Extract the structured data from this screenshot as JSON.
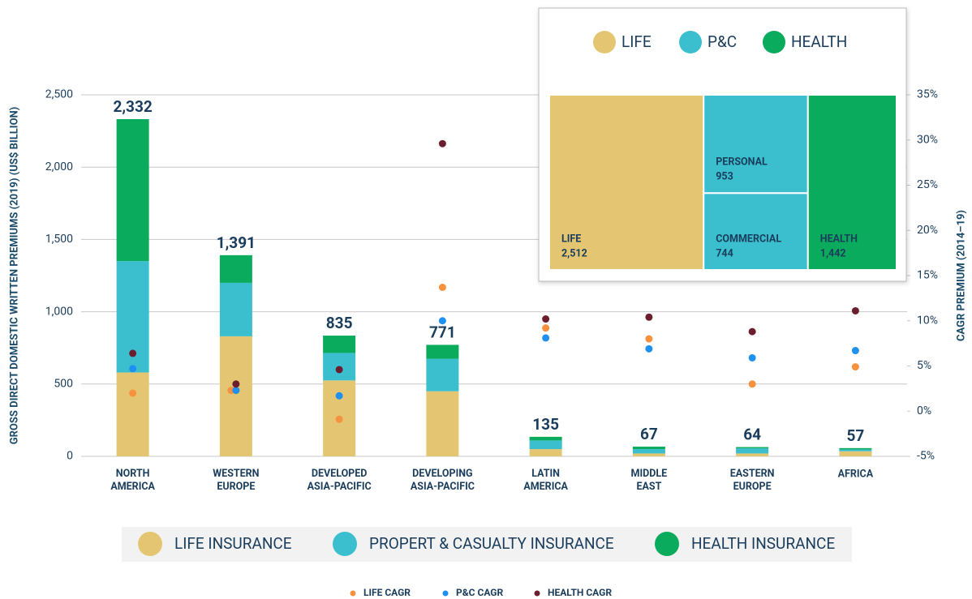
{
  "chart_data": [
    {
      "type": "bar",
      "stacked": true,
      "y_label": "GROSS DIRECT DOMESTIC WRITTEN PREMIUMS (2019) (US$ BILLION)",
      "y2_label": "CAGR PREMIUM (2014–19)",
      "categories": [
        "NORTH AMERICA",
        "WESTERN EUROPE",
        "DEVELOPED ASIA-PACIFIC",
        "DEVELOPING ASIA-PACIFIC",
        "LATIN AMERICA",
        "MIDDLE EAST",
        "EASTERN EUROPE",
        "AFRICA"
      ],
      "series": [
        {
          "name": "LIFE INSURANCE",
          "color": "#e4c672",
          "values": [
            580,
            830,
            525,
            450,
            50,
            20,
            20,
            35
          ]
        },
        {
          "name": "PROPERT & CASUALTY INSURANCE",
          "color": "#3bbfcf",
          "values": [
            770,
            370,
            190,
            225,
            60,
            30,
            35,
            12
          ]
        },
        {
          "name": "HEALTH INSURANCE",
          "color": "#0aab5c",
          "values": [
            982,
            191,
            120,
            96,
            25,
            17,
            9,
            10
          ]
        }
      ],
      "totals": {
        "values": [
          2332,
          1391,
          835,
          771,
          135,
          67,
          64,
          57
        ],
        "value_labels": [
          "2,332",
          "1,391",
          "835",
          "771",
          "135",
          "67",
          "64",
          "57"
        ]
      },
      "cagr_series": [
        {
          "name": "LIFE CAGR",
          "color": "#f7913d",
          "axis": "y2",
          "values": [
            2.0,
            2.3,
            -0.9,
            13.7,
            9.2,
            8.0,
            3.0,
            4.9
          ]
        },
        {
          "name": "P&C CAGR",
          "color": "#1e90f0",
          "axis": "y2",
          "values": [
            4.7,
            2.3,
            1.7,
            10.0,
            8.1,
            6.9,
            5.9,
            6.7
          ]
        },
        {
          "name": "HEALTH CAGR",
          "color": "#6b1f2e",
          "axis": "y2",
          "values": [
            6.4,
            3.0,
            4.6,
            29.6,
            10.2,
            10.4,
            8.8,
            11.1
          ]
        }
      ],
      "ylim": [
        0,
        2500
      ],
      "yticks": [
        0,
        500,
        {
          "value": 1000,
          "label": "1,000"
        },
        {
          "value": 1500,
          "label": "1,500"
        },
        {
          "value": 2000,
          "label": "2,000"
        },
        {
          "value": 2500,
          "label": "2,500"
        }
      ],
      "y2lim": [
        -5,
        35
      ],
      "y2ticks": [
        {
          "value": -5,
          "label": "-5%"
        },
        {
          "value": 0,
          "label": "0%"
        },
        {
          "value": 5,
          "label": "5%"
        },
        {
          "value": 10,
          "label": "10%"
        },
        {
          "value": 15,
          "label": "15%"
        },
        {
          "value": 20,
          "label": "20%"
        },
        {
          "value": 25,
          "label": "25%"
        },
        {
          "value": 30,
          "label": "30%"
        },
        {
          "value": 35,
          "label": "35%"
        }
      ],
      "grid": true
    },
    {
      "type": "treemap",
      "groups": [
        {
          "name": "LIFE",
          "color": "#e4c672",
          "items": [
            {
              "value": 2512,
              "value_label": "2,512"
            }
          ]
        },
        {
          "name": "P&C",
          "color": "#3bbfcf",
          "items": [
            {
              "name": "PERSONAL",
              "value": 953
            },
            {
              "name": "COMMERCIAL",
              "value": 744
            }
          ]
        },
        {
          "name": "HEALTH",
          "color": "#0aab5c",
          "items": [
            {
              "value": 1442,
              "value_label": "1,442"
            }
          ]
        }
      ]
    }
  ]
}
